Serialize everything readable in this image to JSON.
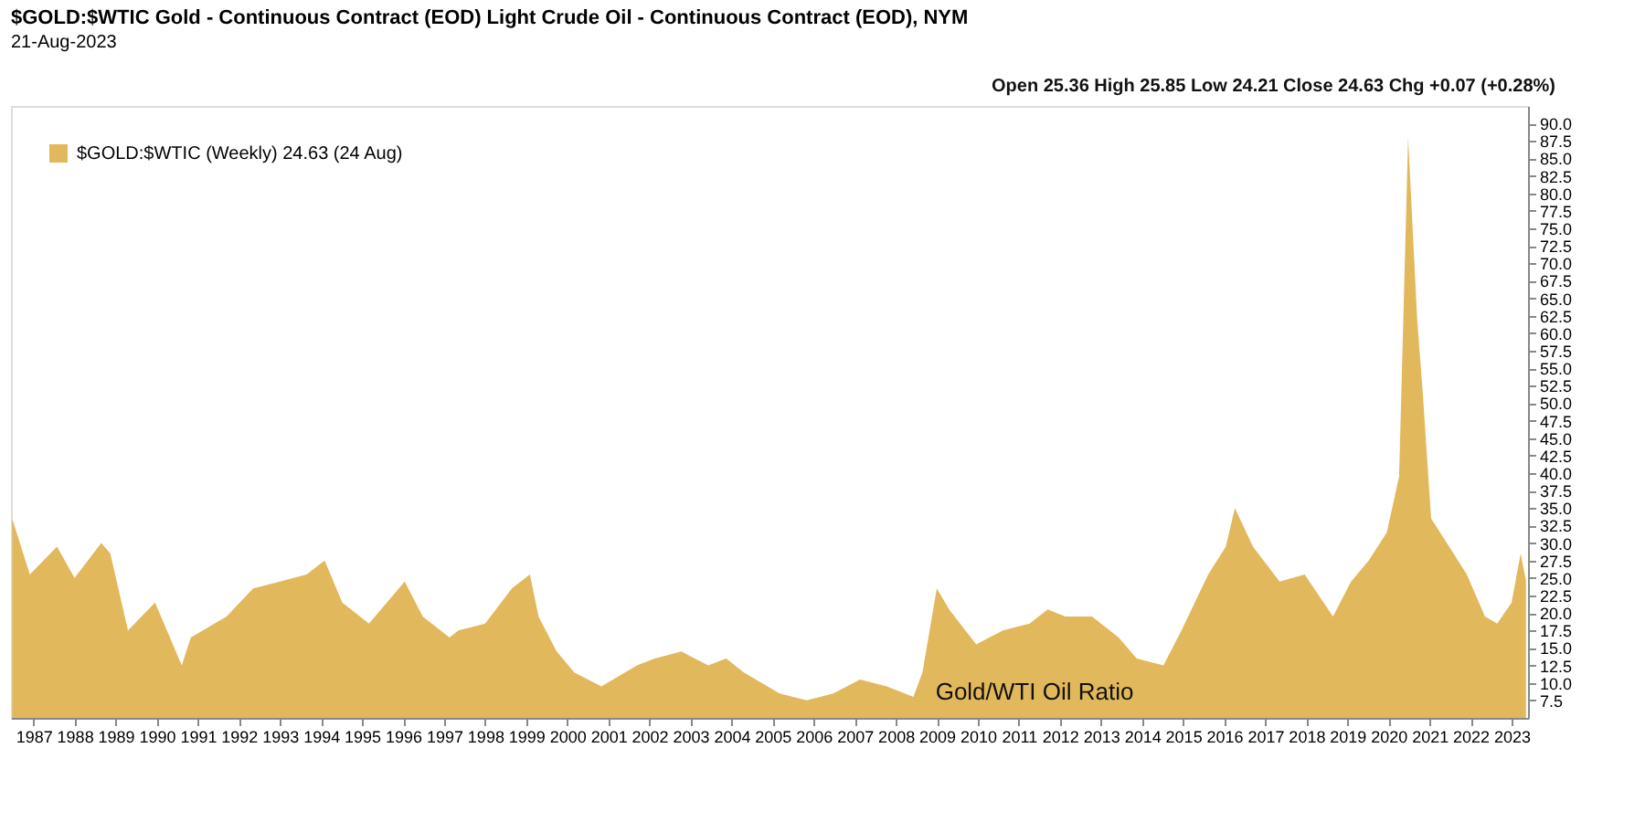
{
  "chart_data": {
    "type": "area",
    "title": "$GOLD:$WTIC Gold - Continuous Contract (EOD) Light Crude Oil - Continuous Contract (EOD), NYM",
    "subtitle": "21-Aug-2023",
    "annotations": [
      "Open 25.36 High 25.85 Low 24.21 Close 24.63 Chg +0.07 (+0.28%)",
      "Gold/WTI Oil Ratio"
    ],
    "legend": "top left",
    "tick_labels": true,
    "series": [
      {
        "name": "$GOLD:$WTIC (Weekly) 24.63 (24 Aug)",
        "color": "#e2b85c",
        "x": [
          1986.48,
          1986.91,
          1987.57,
          1988.0,
          1988.65,
          1988.87,
          1989.3,
          1989.96,
          1990.61,
          1990.83,
          1991.7,
          1992.35,
          1993.0,
          1993.65,
          1994.09,
          1994.52,
          1995.17,
          1996.04,
          1996.48,
          1997.13,
          1997.35,
          1998.0,
          1998.65,
          1999.09,
          1999.3,
          1999.74,
          2000.17,
          2000.83,
          2001.7,
          2002.13,
          2002.78,
          2003.43,
          2003.87,
          2004.3,
          2005.17,
          2005.83,
          2006.48,
          2007.13,
          2007.78,
          2008.43,
          2008.65,
          2009.0,
          2009.3,
          2009.96,
          2010.61,
          2011.26,
          2011.7,
          2012.13,
          2012.78,
          2013.43,
          2013.87,
          2014.52,
          2014.96,
          2015.61,
          2016.04,
          2016.26,
          2016.7,
          2017.35,
          2017.96,
          2018.65,
          2019.09,
          2019.52,
          2019.96,
          2020.26,
          2020.48,
          2020.7,
          2020.83,
          2021.04,
          2021.48,
          2021.91,
          2022.35,
          2022.65,
          2023.0,
          2023.22,
          2023.35
        ],
        "values": [
          33.5,
          25.5,
          29.5,
          25,
          30,
          28.5,
          17.5,
          21.5,
          12.5,
          16.5,
          19.5,
          23.5,
          24.5,
          25.5,
          27.5,
          21.5,
          18.5,
          24.5,
          19.5,
          16.5,
          17.5,
          18.5,
          23.5,
          25.5,
          19.5,
          14.5,
          11.5,
          9.5,
          12.5,
          13.5,
          14.5,
          12.5,
          13.5,
          11.5,
          8.5,
          7.5,
          8.5,
          10.5,
          9.5,
          8,
          11.5,
          23.5,
          20.5,
          15.5,
          17.5,
          18.5,
          20.5,
          19.5,
          19.5,
          16.5,
          13.5,
          12.5,
          17.5,
          25.5,
          29.5,
          35,
          29.5,
          24.5,
          25.5,
          19.5,
          24.5,
          27.5,
          31.5,
          39.5,
          88,
          62,
          52,
          33.5,
          29.5,
          25.5,
          19.5,
          18.5,
          21.5,
          28.5,
          24.6
        ]
      }
    ],
    "xlim": [
      1986.45,
      2023.4
    ],
    "xticks": [
      1987,
      1988,
      1989,
      1990,
      1991,
      1992,
      1993,
      1994,
      1995,
      1996,
      1997,
      1998,
      1999,
      2000,
      2001,
      2002,
      2003,
      2004,
      2005,
      2006,
      2007,
      2008,
      2009,
      2010,
      2011,
      2012,
      2013,
      2014,
      2015,
      2016,
      2017,
      2018,
      2019,
      2020,
      2021,
      2022,
      2023
    ],
    "ylim": [
      5,
      92.5
    ],
    "yticks": [
      {
        "value": 7.5,
        "label": "7.5"
      },
      {
        "value": 10,
        "label": "10.0"
      },
      {
        "value": 12.5,
        "label": "12.5"
      },
      {
        "value": 15,
        "label": "15.0"
      },
      {
        "value": 17.5,
        "label": "17.5"
      },
      {
        "value": 20,
        "label": "20.0"
      },
      {
        "value": 22.5,
        "label": "22.5"
      },
      {
        "value": 25,
        "label": "25.0"
      },
      {
        "value": 27.5,
        "label": "27.5"
      },
      {
        "value": 30,
        "label": "30.0"
      },
      {
        "value": 32.5,
        "label": "32.5"
      },
      {
        "value": 35,
        "label": "35.0"
      },
      {
        "value": 37.5,
        "label": "37.5"
      },
      {
        "value": 40,
        "label": "40.0"
      },
      {
        "value": 42.5,
        "label": "42.5"
      },
      {
        "value": 45,
        "label": "45.0"
      },
      {
        "value": 47.5,
        "label": "47.5"
      },
      {
        "value": 50,
        "label": "50.0"
      },
      {
        "value": 52.5,
        "label": "52.5"
      },
      {
        "value": 55,
        "label": "55.0"
      },
      {
        "value": 57.5,
        "label": "57.5"
      },
      {
        "value": 60,
        "label": "60.0"
      },
      {
        "value": 62.5,
        "label": "62.5"
      },
      {
        "value": 65,
        "label": "65.0"
      },
      {
        "value": 67.5,
        "label": "67.5"
      },
      {
        "value": 70,
        "label": "70.0"
      },
      {
        "value": 72.5,
        "label": "72.5"
      },
      {
        "value": 75,
        "label": "75.0"
      },
      {
        "value": 77.5,
        "label": "77.5"
      },
      {
        "value": 80,
        "label": "80.0"
      },
      {
        "value": 82.5,
        "label": "82.5"
      },
      {
        "value": 85,
        "label": "85.0"
      },
      {
        "value": 87.5,
        "label": "87.5"
      },
      {
        "value": 90,
        "label": "90.0"
      }
    ],
    "grid": false
  }
}
